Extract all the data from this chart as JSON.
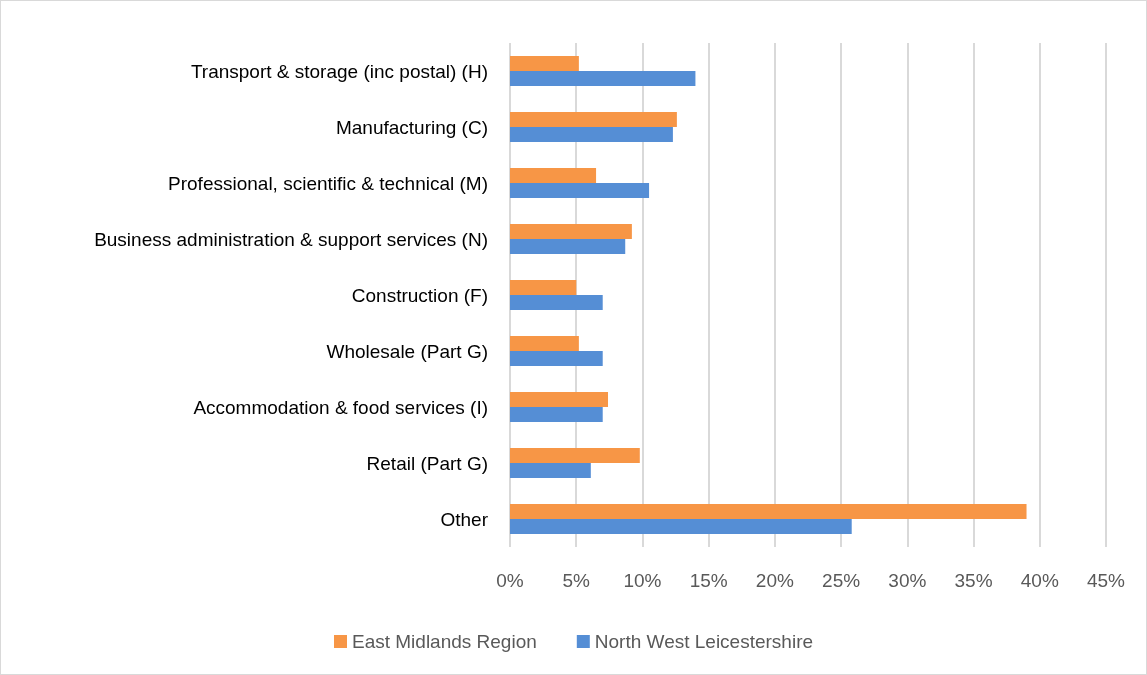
{
  "chart_data": {
    "type": "bar",
    "orientation": "horizontal",
    "categories": [
      "Transport & storage (inc postal) (H)",
      "Manufacturing (C)",
      "Professional, scientific & technical (M)",
      "Business administration & support services (N)",
      "Construction (F)",
      "Wholesale (Part G)",
      "Accommodation & food services (I)",
      "Retail (Part G)",
      "Other"
    ],
    "series": [
      {
        "name": "East Midlands Region",
        "color": "#f79646",
        "values": [
          5.2,
          12.6,
          6.5,
          9.2,
          5.0,
          5.2,
          7.4,
          9.8,
          39.0
        ]
      },
      {
        "name": "North West Leicestershire",
        "color": "#558ed5",
        "values": [
          14.0,
          12.3,
          10.5,
          8.7,
          7.0,
          7.0,
          7.0,
          6.1,
          25.8
        ]
      }
    ],
    "xlim": [
      0,
      45
    ],
    "xticks": [
      {
        "value": 0,
        "label": "0%"
      },
      {
        "value": 5,
        "label": "5%"
      },
      {
        "value": 10,
        "label": "10%"
      },
      {
        "value": 15,
        "label": "15%"
      },
      {
        "value": 20,
        "label": "20%"
      },
      {
        "value": 25,
        "label": "25%"
      },
      {
        "value": 30,
        "label": "30%"
      },
      {
        "value": 35,
        "label": "35%"
      },
      {
        "value": 40,
        "label": "40%"
      },
      {
        "value": 45,
        "label": "45%"
      }
    ],
    "grid": "x",
    "legend": "bottom"
  }
}
